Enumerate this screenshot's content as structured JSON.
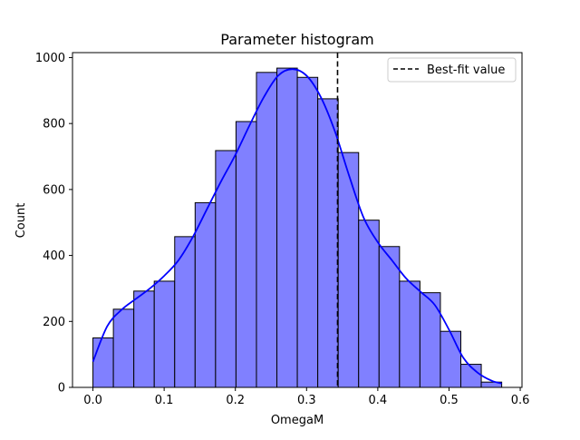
{
  "chart_data": {
    "type": "bar",
    "title": "Parameter histogram",
    "xlabel": "OmegaM",
    "ylabel": "Count",
    "xlim": [
      -0.0287,
      0.6025
    ],
    "ylim": [
      0,
      1015
    ],
    "xticks": [
      0.0,
      0.1,
      0.2,
      0.3,
      0.4,
      0.5,
      0.6
    ],
    "xtick_labels": [
      "0.0",
      "0.1",
      "0.2",
      "0.3",
      "0.4",
      "0.5",
      "0.6"
    ],
    "yticks": [
      0,
      200,
      400,
      600,
      800,
      1000
    ],
    "ytick_labels": [
      "0",
      "200",
      "400",
      "600",
      "800",
      "1000"
    ],
    "bin_edges": [
      0.0,
      0.0287,
      0.0574,
      0.0861,
      0.1148,
      0.1435,
      0.1722,
      0.2009,
      0.2296,
      0.2583,
      0.287,
      0.3157,
      0.3444,
      0.3731,
      0.4018,
      0.4305,
      0.4592,
      0.4879,
      0.5166,
      0.5453,
      0.574
    ],
    "values": [
      150,
      237,
      292,
      322,
      457,
      560,
      718,
      806,
      955,
      968,
      940,
      875,
      712,
      507,
      427,
      322,
      287,
      170,
      70,
      16
    ],
    "kde": {
      "x": [
        0.0,
        0.02,
        0.04,
        0.06,
        0.08,
        0.1,
        0.12,
        0.14,
        0.16,
        0.18,
        0.2,
        0.22,
        0.24,
        0.26,
        0.28,
        0.3,
        0.32,
        0.34,
        0.36,
        0.38,
        0.4,
        0.42,
        0.44,
        0.46,
        0.48,
        0.5,
        0.52,
        0.54,
        0.56,
        0.574
      ],
      "y": [
        78,
        185,
        235,
        268,
        300,
        338,
        385,
        455,
        540,
        625,
        705,
        795,
        880,
        945,
        965,
        945,
        880,
        775,
        640,
        515,
        440,
        385,
        330,
        290,
        250,
        175,
        90,
        45,
        20,
        12
      ]
    },
    "vline": {
      "x": 0.3435,
      "label": "Best-fit value",
      "style": "dashed",
      "color": "#000000"
    },
    "legend": {
      "placement": "top-right",
      "entries": [
        "Best-fit value"
      ]
    },
    "grid": false,
    "colors": {
      "bar_fill": "#8080ff",
      "bar_edge": "#000000",
      "kde_line": "#0000ff",
      "vline": "#000000"
    }
  }
}
